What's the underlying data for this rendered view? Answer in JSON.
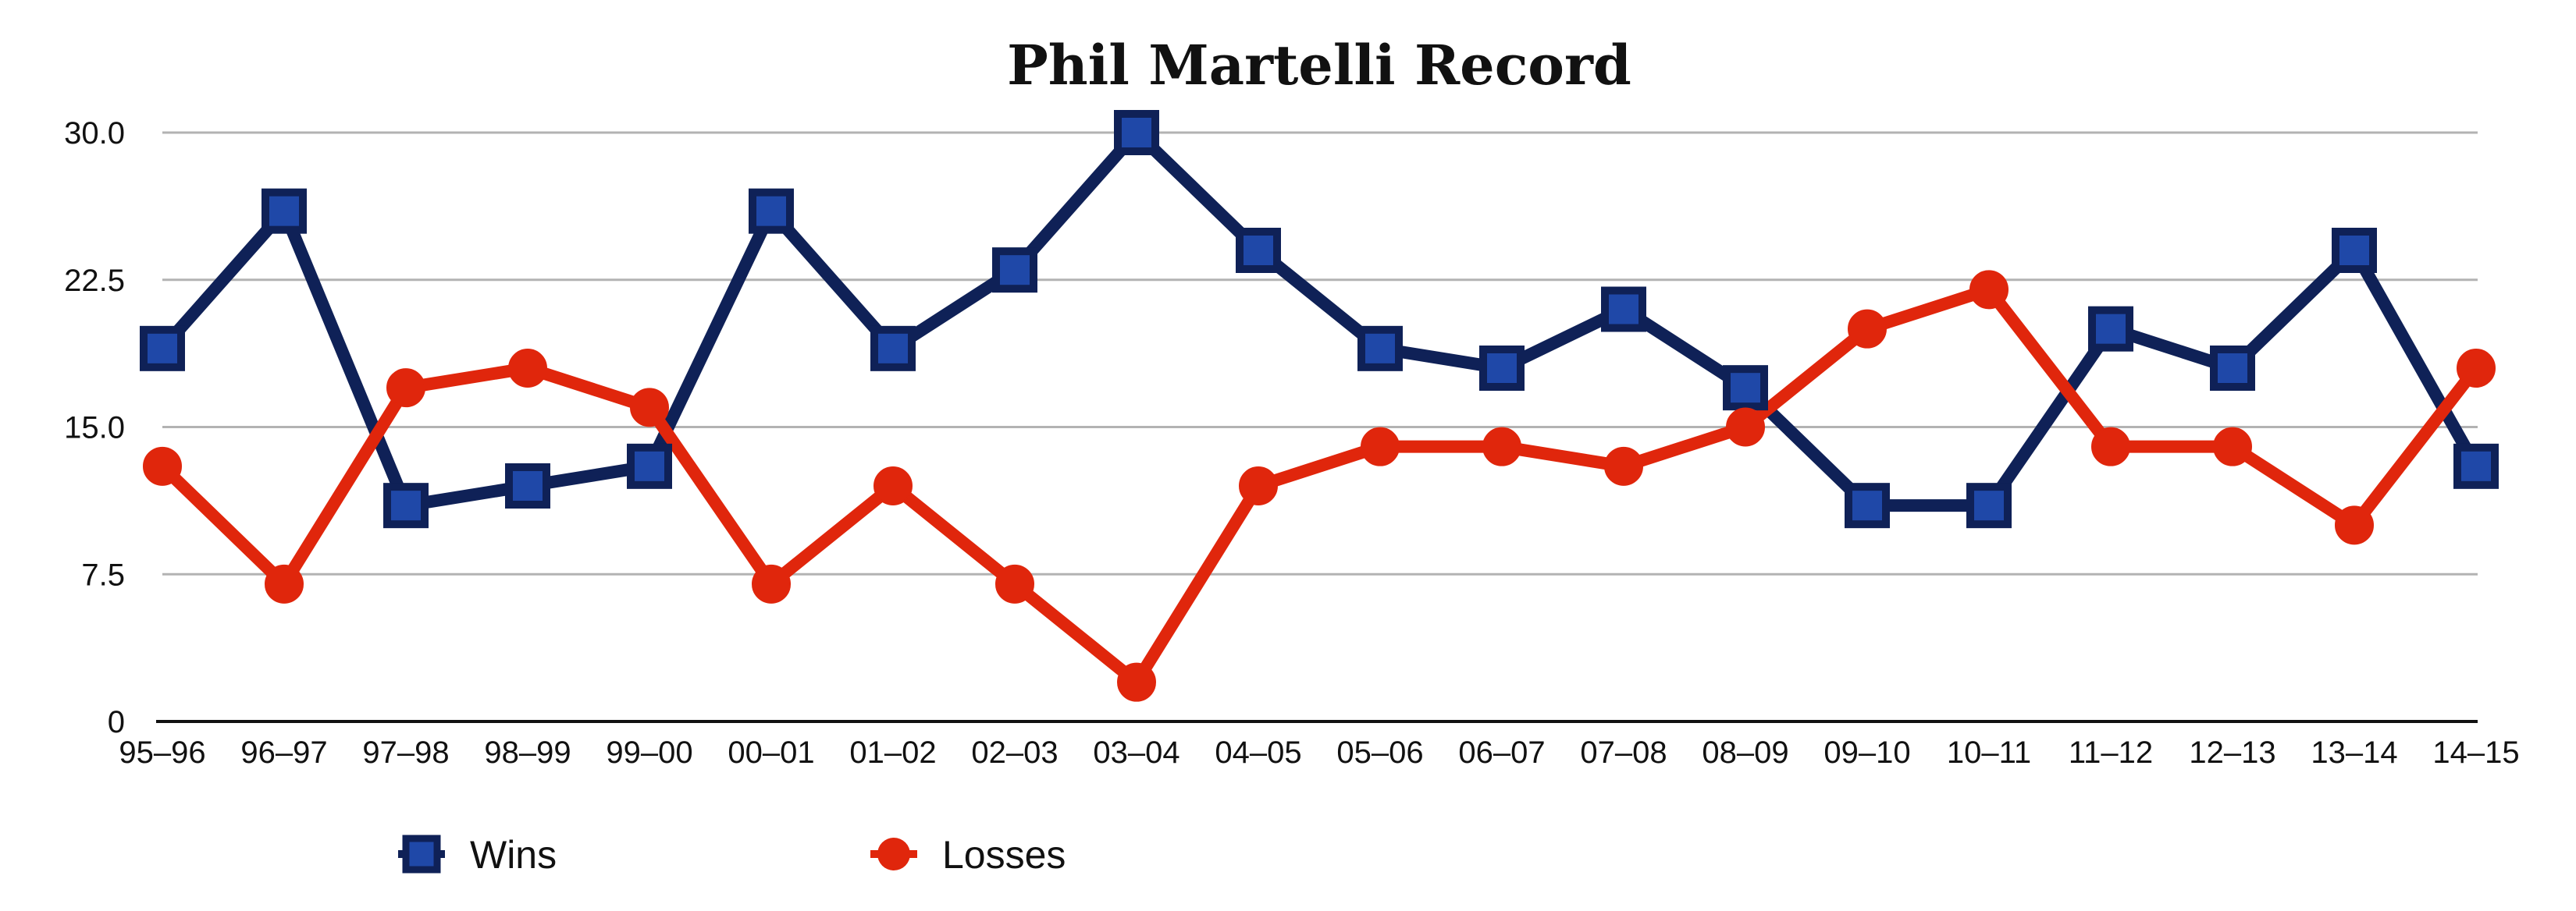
{
  "chart_data": {
    "type": "line",
    "title": "Phil Martelli Record",
    "xlabel": "",
    "ylabel": "",
    "categories": [
      "95–96",
      "96–97",
      "97–98",
      "98–99",
      "99–00",
      "00–01",
      "01–02",
      "02–03",
      "03–04",
      "04–05",
      "05–06",
      "06–07",
      "07–08",
      "08–09",
      "09–10",
      "10–11",
      "11–12",
      "12–13",
      "13–14",
      "14–15"
    ],
    "ylim": [
      0,
      30
    ],
    "yticks": [
      0,
      7.5,
      15,
      22.5,
      30
    ],
    "ytick_labels": [
      "0",
      "7.5",
      "15.0",
      "22.5",
      "30.0"
    ],
    "grid": true,
    "legend_position": "bottom-left",
    "series": [
      {
        "name": "Wins",
        "marker": "square",
        "color": "#0f2157",
        "marker_fill": "#1f48a8",
        "values": [
          19,
          26,
          11,
          12,
          13,
          26,
          19,
          23,
          30,
          24,
          19,
          18,
          21,
          17,
          11,
          11,
          20,
          18,
          24,
          13
        ]
      },
      {
        "name": "Losses",
        "marker": "circle",
        "color": "#e0260c",
        "marker_fill": "#e0260c",
        "values": [
          13,
          7,
          17,
          18,
          16,
          7,
          12,
          7,
          2,
          12,
          14,
          14,
          13,
          15,
          20,
          22,
          14,
          14,
          10,
          18
        ]
      }
    ]
  }
}
